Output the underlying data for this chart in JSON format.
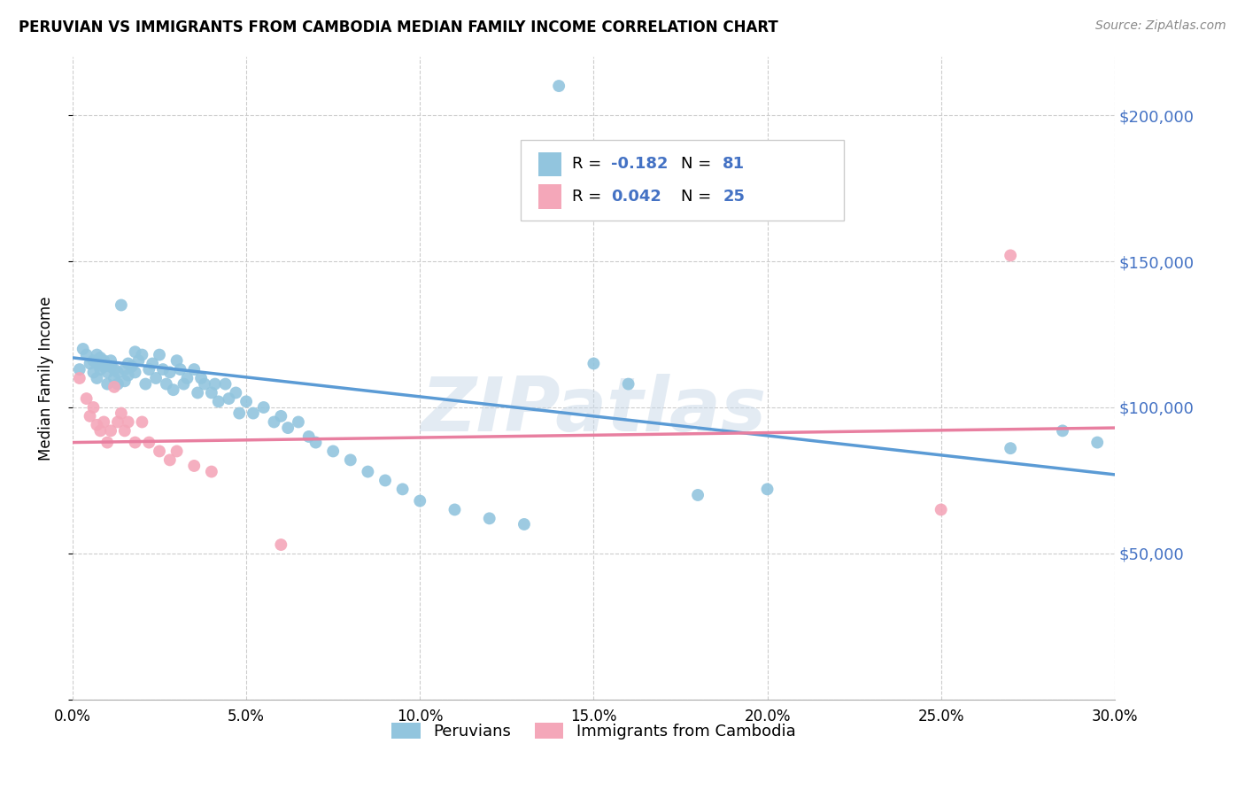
{
  "title": "PERUVIAN VS IMMIGRANTS FROM CAMBODIA MEDIAN FAMILY INCOME CORRELATION CHART",
  "source": "Source: ZipAtlas.com",
  "ylabel": "Median Family Income",
  "xlim": [
    0.0,
    0.3
  ],
  "ylim": [
    0,
    220000
  ],
  "yticks": [
    0,
    50000,
    100000,
    150000,
    200000
  ],
  "ytick_labels": [
    "",
    "$50,000",
    "$100,000",
    "$150,000",
    "$200,000"
  ],
  "xtick_labels": [
    "0.0%",
    "5.0%",
    "10.0%",
    "15.0%",
    "20.0%",
    "25.0%",
    "30.0%"
  ],
  "xticks": [
    0.0,
    0.05,
    0.1,
    0.15,
    0.2,
    0.25,
    0.3
  ],
  "legend_label1": "Peruvians",
  "legend_label2": "Immigrants from Cambodia",
  "R1": "-0.182",
  "N1": "81",
  "R2": "0.042",
  "N2": "25",
  "color_blue": "#92c5de",
  "color_pink": "#f4a7b9",
  "color_blue_line": "#5b9bd5",
  "color_pink_line": "#e87fa0",
  "color_blue_text": "#4472c4",
  "watermark": "ZIPatlas",
  "blue_points_x": [
    0.002,
    0.003,
    0.004,
    0.005,
    0.006,
    0.006,
    0.007,
    0.007,
    0.007,
    0.008,
    0.008,
    0.009,
    0.009,
    0.01,
    0.01,
    0.011,
    0.011,
    0.012,
    0.012,
    0.013,
    0.013,
    0.014,
    0.015,
    0.015,
    0.016,
    0.016,
    0.017,
    0.018,
    0.018,
    0.019,
    0.02,
    0.021,
    0.022,
    0.023,
    0.024,
    0.025,
    0.026,
    0.027,
    0.028,
    0.029,
    0.03,
    0.031,
    0.032,
    0.033,
    0.035,
    0.036,
    0.037,
    0.038,
    0.04,
    0.041,
    0.042,
    0.044,
    0.045,
    0.047,
    0.048,
    0.05,
    0.052,
    0.055,
    0.058,
    0.06,
    0.062,
    0.065,
    0.068,
    0.07,
    0.075,
    0.08,
    0.085,
    0.09,
    0.095,
    0.1,
    0.11,
    0.12,
    0.13,
    0.14,
    0.15,
    0.16,
    0.18,
    0.2,
    0.27,
    0.285,
    0.295
  ],
  "blue_points_y": [
    113000,
    120000,
    118000,
    115000,
    116000,
    112000,
    110000,
    115000,
    118000,
    113000,
    117000,
    114000,
    116000,
    108000,
    112000,
    114000,
    116000,
    110000,
    113000,
    108000,
    112000,
    135000,
    113000,
    109000,
    115000,
    111000,
    114000,
    119000,
    112000,
    116000,
    118000,
    108000,
    113000,
    115000,
    110000,
    118000,
    113000,
    108000,
    112000,
    106000,
    116000,
    113000,
    108000,
    110000,
    113000,
    105000,
    110000,
    108000,
    105000,
    108000,
    102000,
    108000,
    103000,
    105000,
    98000,
    102000,
    98000,
    100000,
    95000,
    97000,
    93000,
    95000,
    90000,
    88000,
    85000,
    82000,
    78000,
    75000,
    72000,
    68000,
    65000,
    62000,
    60000,
    210000,
    115000,
    108000,
    70000,
    72000,
    86000,
    92000,
    88000
  ],
  "pink_points_x": [
    0.002,
    0.004,
    0.005,
    0.006,
    0.007,
    0.008,
    0.009,
    0.01,
    0.011,
    0.012,
    0.013,
    0.014,
    0.015,
    0.016,
    0.018,
    0.02,
    0.022,
    0.025,
    0.028,
    0.03,
    0.035,
    0.04,
    0.06,
    0.25,
    0.27
  ],
  "pink_points_y": [
    110000,
    103000,
    97000,
    100000,
    94000,
    92000,
    95000,
    88000,
    92000,
    107000,
    95000,
    98000,
    92000,
    95000,
    88000,
    95000,
    88000,
    85000,
    82000,
    85000,
    80000,
    78000,
    53000,
    65000,
    152000
  ],
  "blue_line_x": [
    0.0,
    0.3
  ],
  "blue_line_y": [
    117000,
    77000
  ],
  "pink_line_x": [
    0.0,
    0.3
  ],
  "pink_line_y": [
    88000,
    93000
  ]
}
